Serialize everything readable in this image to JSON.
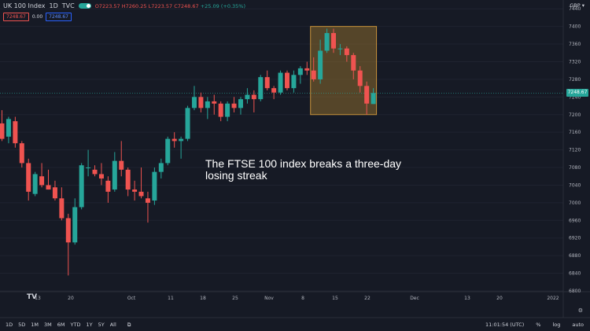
{
  "header": {
    "symbol": "UK 100 Index",
    "interval": "1D",
    "source": "TVC",
    "open": "O7223.57",
    "high": "H7260.25",
    "low": "L7223.57",
    "close": "C7248.67",
    "change": "+25.09 (+0.35%)",
    "sell_price": "7248.67",
    "spread": "0.00",
    "buy_price": "7248.67"
  },
  "currency": "GBP",
  "last_price_tag": "7248.67",
  "annotation": {
    "line1": "The FTSE 100 index breaks a three-day",
    "line2": "losing streak"
  },
  "timeframes": [
    "1D",
    "5D",
    "1M",
    "3M",
    "6M",
    "YTD",
    "1Y",
    "5Y",
    "All"
  ],
  "clock": "11:01:54 (UTC)",
  "percent_label": "%",
  "log_label": "log",
  "auto_label": "auto",
  "colors": {
    "up": "#26a69a",
    "down": "#ef5350",
    "background": "#161a25",
    "highlight_fill": "#8a6a2e",
    "highlight_border": "#c8913a"
  },
  "chart_data": {
    "type": "candlestick",
    "title": "UK 100 Index · 1D · TVC",
    "ylim": [
      6800,
      7440
    ],
    "y_ticks": [
      7440,
      7400,
      7360,
      7320,
      7280,
      7240,
      7200,
      7160,
      7120,
      7080,
      7040,
      7000,
      6960,
      6920,
      6880,
      6840,
      6800
    ],
    "x_ticks": [
      "13",
      "20",
      "Oct",
      "11",
      "18",
      "25",
      "Nov",
      "8",
      "15",
      "22",
      "Dec",
      "13",
      "20",
      "2022"
    ],
    "highlight_range": {
      "from_index": 47,
      "to_index": 56,
      "y_from": 7200,
      "y_to": 7400
    },
    "candles": [
      {
        "o": 7180,
        "h": 7210,
        "l": 7140,
        "c": 7145
      },
      {
        "o": 7150,
        "h": 7195,
        "l": 7135,
        "c": 7190
      },
      {
        "o": 7185,
        "h": 7195,
        "l": 7125,
        "c": 7135
      },
      {
        "o": 7135,
        "h": 7140,
        "l": 7080,
        "c": 7090
      },
      {
        "o": 7090,
        "h": 7100,
        "l": 7005,
        "c": 7025
      },
      {
        "o": 7020,
        "h": 7070,
        "l": 7015,
        "c": 7065
      },
      {
        "o": 7060,
        "h": 7090,
        "l": 7035,
        "c": 7040
      },
      {
        "o": 7040,
        "h": 7075,
        "l": 7030,
        "c": 7030
      },
      {
        "o": 7035,
        "h": 7050,
        "l": 7005,
        "c": 7010
      },
      {
        "o": 7010,
        "h": 7035,
        "l": 6960,
        "c": 6965
      },
      {
        "o": 6965,
        "h": 6975,
        "l": 6835,
        "c": 6910
      },
      {
        "o": 6910,
        "h": 7010,
        "l": 6905,
        "c": 6990
      },
      {
        "o": 6990,
        "h": 7090,
        "l": 6985,
        "c": 7085
      },
      {
        "o": 7080,
        "h": 7120,
        "l": 7060,
        "c": 7080
      },
      {
        "o": 7075,
        "h": 7085,
        "l": 7060,
        "c": 7065
      },
      {
        "o": 7065,
        "h": 7090,
        "l": 7040,
        "c": 7055
      },
      {
        "o": 7050,
        "h": 7060,
        "l": 7000,
        "c": 7025
      },
      {
        "o": 7030,
        "h": 7115,
        "l": 7025,
        "c": 7095
      },
      {
        "o": 7095,
        "h": 7140,
        "l": 7060,
        "c": 7075
      },
      {
        "o": 7075,
        "h": 7080,
        "l": 7015,
        "c": 7030
      },
      {
        "o": 7030,
        "h": 7050,
        "l": 7005,
        "c": 7025
      },
      {
        "o": 7025,
        "h": 7080,
        "l": 7010,
        "c": 7015
      },
      {
        "o": 7010,
        "h": 7025,
        "l": 6955,
        "c": 7000
      },
      {
        "o": 7005,
        "h": 7080,
        "l": 6995,
        "c": 7070
      },
      {
        "o": 7070,
        "h": 7100,
        "l": 7055,
        "c": 7090
      },
      {
        "o": 7090,
        "h": 7150,
        "l": 7085,
        "c": 7145
      },
      {
        "o": 7145,
        "h": 7160,
        "l": 7125,
        "c": 7140
      },
      {
        "o": 7140,
        "h": 7150,
        "l": 7100,
        "c": 7145
      },
      {
        "o": 7145,
        "h": 7220,
        "l": 7140,
        "c": 7215
      },
      {
        "o": 7215,
        "h": 7265,
        "l": 7210,
        "c": 7240
      },
      {
        "o": 7240,
        "h": 7250,
        "l": 7205,
        "c": 7215
      },
      {
        "o": 7215,
        "h": 7240,
        "l": 7190,
        "c": 7230
      },
      {
        "o": 7230,
        "h": 7245,
        "l": 7200,
        "c": 7225
      },
      {
        "o": 7225,
        "h": 7230,
        "l": 7185,
        "c": 7195
      },
      {
        "o": 7195,
        "h": 7230,
        "l": 7185,
        "c": 7225
      },
      {
        "o": 7225,
        "h": 7240,
        "l": 7205,
        "c": 7215
      },
      {
        "o": 7215,
        "h": 7240,
        "l": 7200,
        "c": 7235
      },
      {
        "o": 7235,
        "h": 7260,
        "l": 7225,
        "c": 7245
      },
      {
        "o": 7245,
        "h": 7255,
        "l": 7205,
        "c": 7235
      },
      {
        "o": 7235,
        "h": 7290,
        "l": 7230,
        "c": 7285
      },
      {
        "o": 7285,
        "h": 7300,
        "l": 7255,
        "c": 7260
      },
      {
        "o": 7260,
        "h": 7265,
        "l": 7235,
        "c": 7250
      },
      {
        "o": 7250,
        "h": 7300,
        "l": 7245,
        "c": 7295
      },
      {
        "o": 7295,
        "h": 7300,
        "l": 7255,
        "c": 7260
      },
      {
        "o": 7260,
        "h": 7300,
        "l": 7250,
        "c": 7290
      },
      {
        "o": 7290,
        "h": 7310,
        "l": 7270,
        "c": 7305
      },
      {
        "o": 7305,
        "h": 7320,
        "l": 7290,
        "c": 7300
      },
      {
        "o": 7300,
        "h": 7330,
        "l": 7275,
        "c": 7280
      },
      {
        "o": 7280,
        "h": 7370,
        "l": 7270,
        "c": 7345
      },
      {
        "o": 7345,
        "h": 7395,
        "l": 7340,
        "c": 7385
      },
      {
        "o": 7385,
        "h": 7395,
        "l": 7340,
        "c": 7350
      },
      {
        "o": 7350,
        "h": 7360,
        "l": 7335,
        "c": 7350
      },
      {
        "o": 7350,
        "h": 7355,
        "l": 7320,
        "c": 7335
      },
      {
        "o": 7335,
        "h": 7340,
        "l": 7280,
        "c": 7300
      },
      {
        "o": 7300,
        "h": 7310,
        "l": 7250,
        "c": 7265
      },
      {
        "o": 7265,
        "h": 7275,
        "l": 7200,
        "c": 7225
      },
      {
        "o": 7224,
        "h": 7260,
        "l": 7224,
        "c": 7249
      }
    ]
  }
}
